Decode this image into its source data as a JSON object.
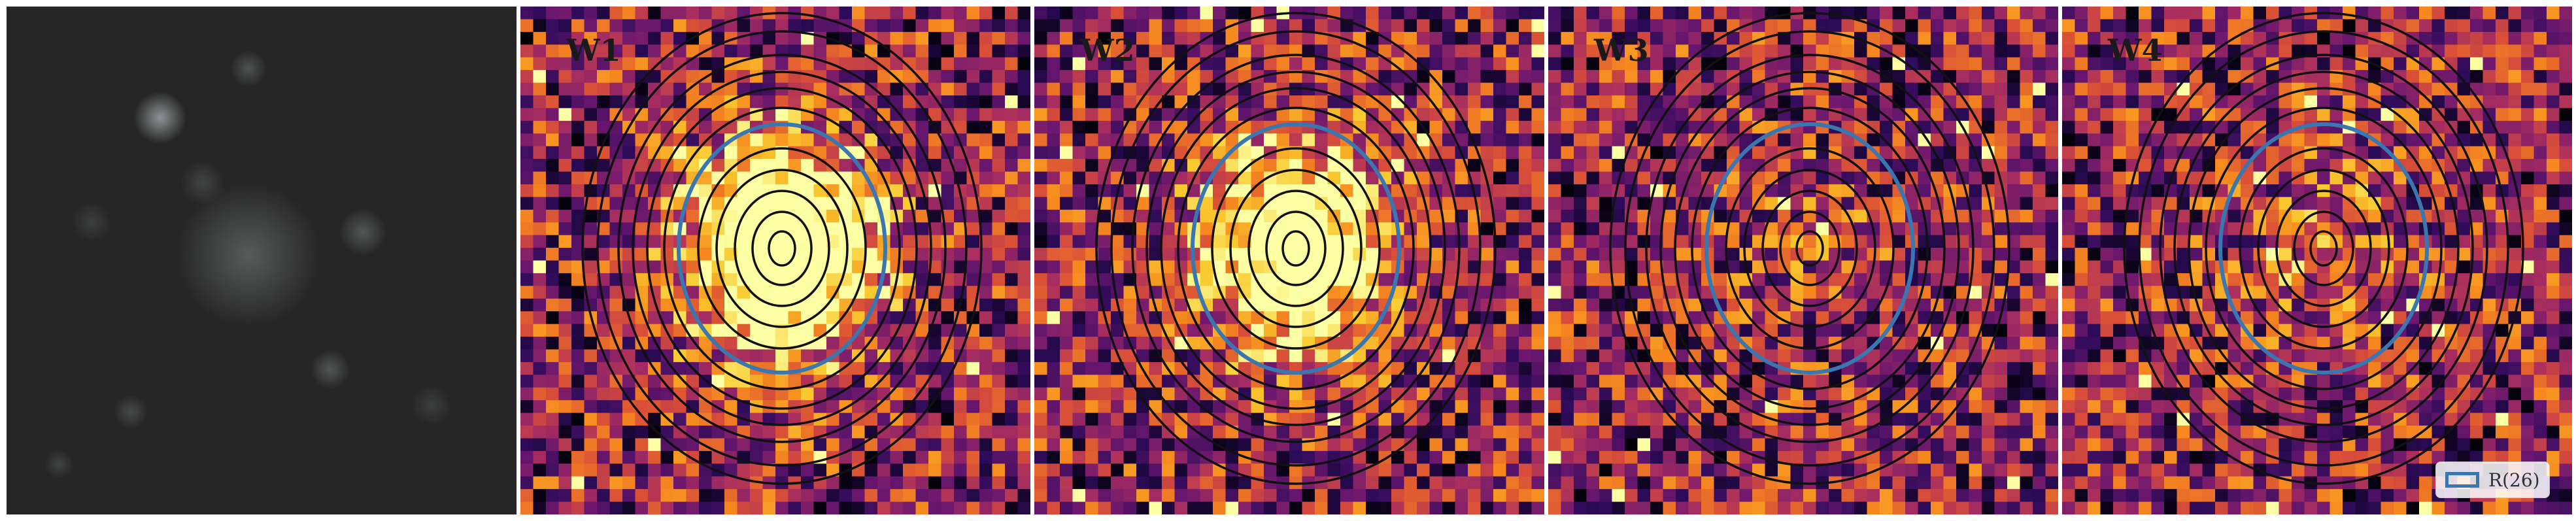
{
  "panels": [
    {
      "id": "optical",
      "label": "",
      "kind": "optical",
      "seed": 11
    },
    {
      "id": "w1",
      "label": "W1",
      "kind": "heatmap",
      "seed": 21,
      "core": 1.0
    },
    {
      "id": "w2",
      "label": "W2",
      "kind": "heatmap",
      "seed": 37,
      "core": 0.85
    },
    {
      "id": "w3",
      "label": "W3",
      "kind": "heatmap",
      "seed": 53,
      "core": 0.1
    },
    {
      "id": "w4",
      "label": "W4",
      "kind": "heatmap",
      "seed": 71,
      "core": 0.2
    }
  ],
  "legend": {
    "label": "R(26)"
  },
  "colors": {
    "aperture": "#3a76b0",
    "contours": "#111111",
    "colormap": [
      "#000004",
      "#2d0b59",
      "#6a176e",
      "#a52c60",
      "#d84e38",
      "#f6881f",
      "#f9c92e",
      "#fcffa4"
    ]
  }
}
